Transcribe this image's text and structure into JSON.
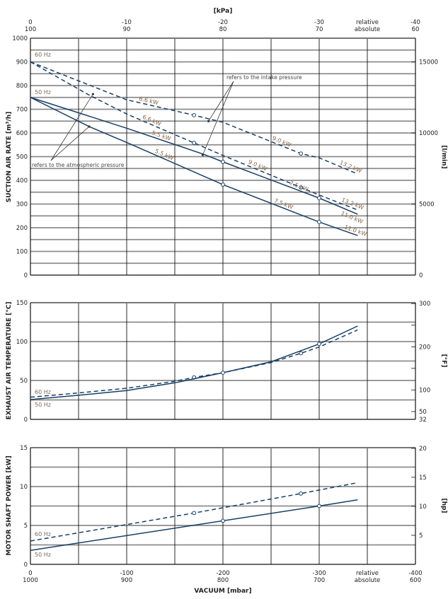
{
  "chart_data": [
    {
      "type": "line",
      "ylabel": "SUCTION AIR RATE  [m³/h]",
      "ylabel_right": "[l/min]",
      "ylim": [
        0,
        1000
      ],
      "yticks": [
        0,
        100,
        200,
        300,
        400,
        500,
        600,
        700,
        800,
        900,
        1000
      ],
      "yticks_right": [
        {
          "label": "0",
          "value": 0
        },
        {
          "label": "5000",
          "value": 300
        },
        {
          "label": "10000",
          "value": 600
        },
        {
          "label": "15000",
          "value": 900
        }
      ],
      "grid_step": 50,
      "top_axis": {
        "title": "[kPa]",
        "relative_labels": [
          "0",
          "-10",
          "-20",
          "-30",
          "relative",
          "-40"
        ],
        "absolute_labels": [
          "100",
          "90",
          "80",
          "70",
          "absolute",
          "60"
        ]
      },
      "series": [
        {
          "name": "60 Hz",
          "style": "dashed",
          "ref": "intake",
          "x": [
            0,
            -100,
            -170,
            -200,
            -281,
            -300,
            -340
          ],
          "y": [
            900,
            740,
            675,
            645,
            513,
            495,
            427
          ],
          "markers": [
            -170,
            -281
          ],
          "labels": [
            {
              "text": "6.6 kW",
              "at": -112
            },
            {
              "text": "9.0 kW",
              "at": -250
            },
            {
              "text": "13.2 kW",
              "at": -320
            }
          ]
        },
        {
          "name": "60 Hz",
          "style": "dashed",
          "ref": "atmospheric",
          "x": [
            0,
            -61,
            -100,
            -170,
            -200,
            -281,
            -300,
            -340
          ],
          "y": [
            900,
            760,
            680,
            558,
            505,
            370,
            338,
            275
          ],
          "markers": [
            -170,
            -281
          ],
          "labels": [
            {
              "text": "6.6 kW",
              "at": -115
            },
            {
              "text": "9.0 kW",
              "at": -225
            },
            {
              "text": "13.2 kW",
              "at": -322
            }
          ]
        },
        {
          "name": "50 Hz",
          "style": "solid",
          "ref": "intake",
          "x": [
            0,
            -100,
            -180,
            -200,
            -300,
            -340
          ],
          "y": [
            750,
            620,
            510,
            478,
            325,
            257
          ],
          "markers": [
            -200,
            -300
          ],
          "labels": [
            {
              "text": "5.5 kW",
              "at": -125
            },
            {
              "text": "7.5 kW",
              "at": -268
            },
            {
              "text": "11.0 kW",
              "at": -325
            }
          ]
        },
        {
          "name": "50 Hz",
          "style": "solid",
          "ref": "atmospheric",
          "x": [
            0,
            -61,
            -100,
            -200,
            -300,
            -340
          ],
          "y": [
            750,
            627,
            560,
            382,
            224,
            167
          ],
          "markers": [
            -200,
            -300
          ],
          "labels": [
            {
              "text": "5.5 kW",
              "at": -128
            },
            {
              "text": "7.5 kW",
              "at": -252
            },
            {
              "text": "11.0 kW",
              "at": -325
            }
          ]
        }
      ],
      "annotations": [
        {
          "text": "refers to the intake pressure",
          "targets": [
            {
              "x": -185,
              "y": 650
            },
            {
              "x": -179,
              "y": 507
            }
          ]
        },
        {
          "text": "refers to the atmospheric pressure",
          "targets": [
            {
              "x": -65,
              "y": 764
            },
            {
              "x": -61,
              "y": 627
            }
          ]
        }
      ]
    },
    {
      "type": "line",
      "ylabel": "EXHAUST AIR TEMPERATURE  [°C]",
      "ylabel_right": "[°F]",
      "ylim": [
        0,
        150
      ],
      "yticks": [
        0,
        50,
        100,
        150
      ],
      "yticks_right": [
        {
          "label": "32",
          "value": 0
        },
        {
          "label": "50",
          "value": 10
        },
        {
          "label": "100",
          "value": 37.8
        },
        {
          "label": "",
          "value": 65.6
        },
        {
          "label": "200",
          "value": 93.3
        },
        {
          "label": "",
          "value": 121.1
        },
        {
          "label": "300",
          "value": 148.9
        }
      ],
      "grid_step": 25,
      "series": [
        {
          "name": "60 Hz",
          "style": "dashed",
          "x": [
            0,
            -50,
            -100,
            -150,
            -170,
            -200,
            -250,
            -281,
            -300,
            -340
          ],
          "y": [
            28.5,
            34,
            40,
            49,
            54,
            60,
            73,
            85,
            93,
            115
          ],
          "markers": [
            -170,
            -281
          ]
        },
        {
          "name": "50 Hz",
          "style": "solid",
          "x": [
            0,
            -50,
            -100,
            -150,
            -200,
            -250,
            -300,
            -340
          ],
          "y": [
            25.5,
            31,
            37,
            47,
            60,
            74,
            97,
            120
          ],
          "markers": [
            -200,
            -300
          ]
        }
      ]
    },
    {
      "type": "line",
      "ylabel": "MOTOR SHAFT POWER  [kW]",
      "ylabel_right": "[hp]",
      "ylim": [
        0,
        15
      ],
      "yticks": [
        0,
        5,
        10,
        15
      ],
      "yticks_right": [
        {
          "label": "5",
          "value": 3.73
        },
        {
          "label": "10",
          "value": 7.46
        },
        {
          "label": "15",
          "value": 11.19
        },
        {
          "label": "20",
          "value": 14.91
        }
      ],
      "grid_step": 2.5,
      "xlabel": "VACUUM  [mbar]",
      "bottom_axis": {
        "relative_labels": [
          "0",
          "-100",
          "-200",
          "-300",
          "relative",
          "-400"
        ],
        "absolute_labels": [
          "1000",
          "900",
          "800",
          "700",
          "absolute",
          "600"
        ]
      },
      "series": [
        {
          "name": "60 Hz",
          "style": "dashed",
          "x": [
            0,
            -170,
            -281,
            -340
          ],
          "y": [
            3.0,
            6.6,
            9.1,
            10.5
          ],
          "markers": [
            -170,
            -281
          ]
        },
        {
          "name": "50 Hz",
          "style": "solid",
          "x": [
            0,
            -200,
            -300,
            -340
          ],
          "y": [
            1.8,
            5.6,
            7.5,
            8.3
          ],
          "markers": [
            -200,
            -300
          ]
        }
      ]
    }
  ],
  "colors": {
    "line": "#173f66",
    "hz_label": "#7a6a5a",
    "kw_label": "#8a6440",
    "grid_h": "#8c8c8c",
    "grid_v": "#111111"
  }
}
